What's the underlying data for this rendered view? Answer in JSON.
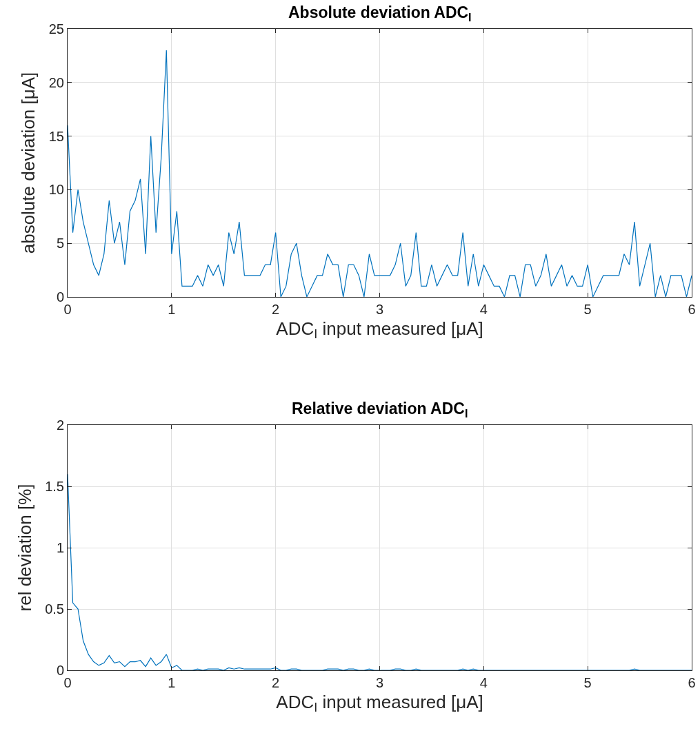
{
  "chart_data": [
    {
      "type": "line",
      "title": "Absolute deviation ADC$_{I}$",
      "xlabel": "ADC$_{I}$ input measured [μA]",
      "ylabel": "absolute deviation [μA]",
      "xlim": [
        0,
        6
      ],
      "xticks": [
        0,
        1,
        2,
        3,
        4,
        5,
        6
      ],
      "ylim": [
        0,
        25
      ],
      "yticks": [
        0,
        5,
        10,
        15,
        20,
        25
      ],
      "grid": true,
      "marker": "none",
      "line_style": "solid",
      "x": [
        0,
        0.05,
        0.1,
        0.15,
        0.2,
        0.25,
        0.3,
        0.35,
        0.4,
        0.45,
        0.5,
        0.55,
        0.6,
        0.65,
        0.7,
        0.75,
        0.8,
        0.85,
        0.9,
        0.95,
        1,
        1.05,
        1.1,
        1.15,
        1.2,
        1.25,
        1.3,
        1.35,
        1.4,
        1.45,
        1.5,
        1.55,
        1.6,
        1.65,
        1.7,
        1.75,
        1.8,
        1.85,
        1.9,
        1.95,
        2,
        2.05,
        2.1,
        2.15,
        2.2,
        2.25,
        2.3,
        2.35,
        2.4,
        2.45,
        2.5,
        2.55,
        2.6,
        2.65,
        2.7,
        2.75,
        2.8,
        2.85,
        2.9,
        2.95,
        3,
        3.05,
        3.1,
        3.15,
        3.2,
        3.25,
        3.3,
        3.35,
        3.4,
        3.45,
        3.5,
        3.55,
        3.6,
        3.65,
        3.7,
        3.75,
        3.8,
        3.85,
        3.9,
        3.95,
        4,
        4.05,
        4.1,
        4.15,
        4.2,
        4.25,
        4.3,
        4.35,
        4.4,
        4.45,
        4.5,
        4.55,
        4.6,
        4.65,
        4.7,
        4.75,
        4.8,
        4.85,
        4.9,
        4.95,
        5,
        5.05,
        5.1,
        5.15,
        5.2,
        5.25,
        5.3,
        5.35,
        5.4,
        5.45,
        5.5,
        5.55,
        5.6,
        5.65,
        5.7,
        5.75,
        5.8,
        5.85,
        5.9,
        5.95,
        6
      ],
      "series": [
        {
          "color": "#0072bd",
          "values": [
            16,
            6,
            10,
            7,
            5,
            3,
            2,
            4,
            9,
            5,
            7,
            3,
            8,
            9,
            11,
            4,
            15,
            6,
            13,
            23,
            4,
            8,
            1,
            1,
            1,
            2,
            1,
            3,
            2,
            3,
            1,
            6,
            4,
            7,
            2,
            2,
            2,
            2,
            3,
            3,
            6,
            0,
            1,
            4,
            5,
            2,
            0,
            1,
            2,
            2,
            4,
            3,
            3,
            0,
            3,
            3,
            2,
            0,
            4,
            2,
            2,
            2,
            2,
            3,
            5,
            1,
            2,
            6,
            1,
            1,
            3,
            1,
            2,
            3,
            2,
            2,
            6,
            1,
            4,
            1,
            3,
            2,
            1,
            1,
            0,
            2,
            2,
            0,
            3,
            3,
            1,
            2,
            4,
            1,
            2,
            3,
            1,
            2,
            1,
            1,
            3,
            0,
            1,
            2,
            2,
            2,
            2,
            4,
            3,
            7,
            1,
            3,
            5,
            0,
            2,
            0,
            2,
            2,
            2,
            0,
            2
          ]
        }
      ]
    },
    {
      "type": "line",
      "title": "Relative deviation ADC$_{I}$",
      "xlabel": "ADC$_{I}$ input measured [μA]",
      "ylabel": "rel deviation [%]",
      "xlim": [
        0,
        6
      ],
      "xticks": [
        0,
        1,
        2,
        3,
        4,
        5,
        6
      ],
      "ylim": [
        0,
        2
      ],
      "yticks": [
        0,
        0.5,
        1,
        1.5,
        2
      ],
      "grid": true,
      "marker": "none",
      "line_style": "solid",
      "x": [
        0,
        0.05,
        0.1,
        0.15,
        0.2,
        0.25,
        0.3,
        0.35,
        0.4,
        0.45,
        0.5,
        0.55,
        0.6,
        0.65,
        0.7,
        0.75,
        0.8,
        0.85,
        0.9,
        0.95,
        1,
        1.05,
        1.1,
        1.15,
        1.2,
        1.25,
        1.3,
        1.35,
        1.4,
        1.45,
        1.5,
        1.55,
        1.6,
        1.65,
        1.7,
        1.75,
        1.8,
        1.85,
        1.9,
        1.95,
        2,
        2.05,
        2.1,
        2.15,
        2.2,
        2.25,
        2.3,
        2.35,
        2.4,
        2.45,
        2.5,
        2.55,
        2.6,
        2.65,
        2.7,
        2.75,
        2.8,
        2.85,
        2.9,
        2.95,
        3,
        3.05,
        3.1,
        3.15,
        3.2,
        3.25,
        3.3,
        3.35,
        3.4,
        3.45,
        3.5,
        3.55,
        3.6,
        3.65,
        3.7,
        3.75,
        3.8,
        3.85,
        3.9,
        3.95,
        4,
        4.05,
        4.1,
        4.15,
        4.2,
        4.25,
        4.3,
        4.35,
        4.4,
        4.45,
        4.5,
        4.55,
        4.6,
        4.65,
        4.7,
        4.75,
        4.8,
        4.85,
        4.9,
        4.95,
        5,
        5.05,
        5.1,
        5.15,
        5.2,
        5.25,
        5.3,
        5.35,
        5.4,
        5.45,
        5.5,
        5.55,
        5.6,
        5.65,
        5.7,
        5.75,
        5.8,
        5.85,
        5.9,
        5.95,
        6
      ],
      "series": [
        {
          "color": "#0072bd",
          "values": [
            1.6,
            0.55,
            0.5,
            0.24,
            0.13,
            0.07,
            0.04,
            0.06,
            0.12,
            0.06,
            0.07,
            0.03,
            0.07,
            0.07,
            0.08,
            0.03,
            0.1,
            0.04,
            0.07,
            0.13,
            0.02,
            0.04,
            0,
            0,
            0,
            0.01,
            0,
            0.01,
            0.01,
            0.01,
            0,
            0.02,
            0.01,
            0.02,
            0.01,
            0.01,
            0.01,
            0.01,
            0.01,
            0.01,
            0.02,
            0,
            0,
            0.01,
            0.01,
            0,
            0,
            0,
            0,
            0,
            0.01,
            0.01,
            0.01,
            0,
            0.01,
            0.01,
            0,
            0,
            0.01,
            0,
            0,
            0,
            0,
            0.01,
            0.01,
            0,
            0,
            0.01,
            0,
            0,
            0,
            0,
            0,
            0,
            0,
            0,
            0.01,
            0,
            0.01,
            0,
            0,
            0,
            0,
            0,
            0,
            0,
            0,
            0,
            0,
            0,
            0,
            0,
            0,
            0,
            0,
            0,
            0,
            0,
            0,
            0,
            0,
            0,
            0,
            0,
            0,
            0,
            0,
            0,
            0,
            0.01,
            0,
            0,
            0,
            0,
            0,
            0,
            0,
            0,
            0,
            0,
            0
          ]
        }
      ]
    }
  ]
}
